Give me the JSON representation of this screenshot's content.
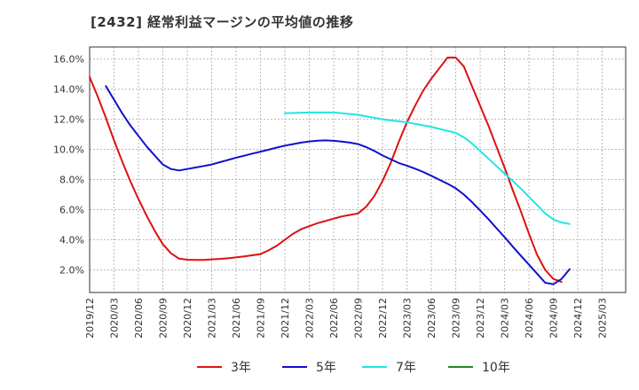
{
  "title": "[2432]  経常利益マージンの平均値の推移",
  "chart_data": {
    "type": "line",
    "title": "[2432]  経常利益マージンの平均値の推移",
    "xlabel": "",
    "ylabel": "",
    "x_ticks": [
      "2019/12",
      "2020/03",
      "2020/06",
      "2020/09",
      "2020/12",
      "2021/03",
      "2021/06",
      "2021/09",
      "2021/12",
      "2022/03",
      "2022/06",
      "2022/09",
      "2022/12",
      "2023/03",
      "2023/06",
      "2023/09",
      "2023/12",
      "2024/03",
      "2024/06",
      "2024/09",
      "2024/12",
      "2025/03"
    ],
    "y_ticks": [
      "2.0%",
      "4.0%",
      "6.0%",
      "8.0%",
      "10.0%",
      "12.0%",
      "14.0%",
      "16.0%"
    ],
    "ylim": [
      0.5,
      16.8
    ],
    "grid": true,
    "legend_position": "bottom",
    "series": [
      {
        "name": "3年",
        "color": "#dd1111",
        "points": [
          [
            "2019/12",
            14.8
          ],
          [
            "2020/01",
            13.5
          ],
          [
            "2020/02",
            12.1
          ],
          [
            "2020/03",
            10.6
          ],
          [
            "2020/04",
            9.2
          ],
          [
            "2020/05",
            7.9
          ],
          [
            "2020/06",
            6.7
          ],
          [
            "2020/07",
            5.6
          ],
          [
            "2020/08",
            4.6
          ],
          [
            "2020/09",
            3.7
          ],
          [
            "2020/10",
            3.1
          ],
          [
            "2020/11",
            2.75
          ],
          [
            "2020/12",
            2.68
          ],
          [
            "2021/01",
            2.66
          ],
          [
            "2021/02",
            2.66
          ],
          [
            "2021/03",
            2.7
          ],
          [
            "2021/04",
            2.73
          ],
          [
            "2021/05",
            2.77
          ],
          [
            "2021/06",
            2.83
          ],
          [
            "2021/07",
            2.9
          ],
          [
            "2021/08",
            2.97
          ],
          [
            "2021/09",
            3.05
          ],
          [
            "2021/10",
            3.3
          ],
          [
            "2021/11",
            3.6
          ],
          [
            "2021/12",
            4.0
          ],
          [
            "2022/01",
            4.4
          ],
          [
            "2022/02",
            4.7
          ],
          [
            "2022/03",
            4.9
          ],
          [
            "2022/04",
            5.1
          ],
          [
            "2022/05",
            5.25
          ],
          [
            "2022/06",
            5.4
          ],
          [
            "2022/07",
            5.55
          ],
          [
            "2022/08",
            5.65
          ],
          [
            "2022/09",
            5.75
          ],
          [
            "2022/10",
            6.2
          ],
          [
            "2022/11",
            6.9
          ],
          [
            "2022/12",
            7.9
          ],
          [
            "2023/01",
            9.1
          ],
          [
            "2023/02",
            10.5
          ],
          [
            "2023/03",
            11.8
          ],
          [
            "2023/04",
            12.9
          ],
          [
            "2023/05",
            13.9
          ],
          [
            "2023/06",
            14.7
          ],
          [
            "2023/07",
            15.4
          ],
          [
            "2023/08",
            16.1
          ],
          [
            "2023/09",
            16.1
          ],
          [
            "2023/10",
            15.5
          ],
          [
            "2023/11",
            14.2
          ],
          [
            "2023/12",
            12.9
          ],
          [
            "2024/01",
            11.6
          ],
          [
            "2024/02",
            10.2
          ],
          [
            "2024/03",
            8.8
          ],
          [
            "2024/04",
            7.3
          ],
          [
            "2024/05",
            5.9
          ],
          [
            "2024/06",
            4.4
          ],
          [
            "2024/07",
            3.0
          ],
          [
            "2024/08",
            2.0
          ],
          [
            "2024/09",
            1.4
          ],
          [
            "2024/10",
            1.2
          ]
        ]
      },
      {
        "name": "5年",
        "color": "#1111cc",
        "points": [
          [
            "2020/02",
            14.2
          ],
          [
            "2020/03",
            13.3
          ],
          [
            "2020/04",
            12.4
          ],
          [
            "2020/05",
            11.6
          ],
          [
            "2020/06",
            10.9
          ],
          [
            "2020/07",
            10.2
          ],
          [
            "2020/08",
            9.6
          ],
          [
            "2020/09",
            9.0
          ],
          [
            "2020/10",
            8.7
          ],
          [
            "2020/11",
            8.6
          ],
          [
            "2020/12",
            8.7
          ],
          [
            "2021/01",
            8.8
          ],
          [
            "2021/02",
            8.9
          ],
          [
            "2021/03",
            9.0
          ],
          [
            "2021/04",
            9.15
          ],
          [
            "2021/05",
            9.3
          ],
          [
            "2021/06",
            9.45
          ],
          [
            "2021/07",
            9.58
          ],
          [
            "2021/08",
            9.72
          ],
          [
            "2021/09",
            9.85
          ],
          [
            "2021/10",
            9.98
          ],
          [
            "2021/11",
            10.12
          ],
          [
            "2021/12",
            10.25
          ],
          [
            "2022/01",
            10.35
          ],
          [
            "2022/02",
            10.45
          ],
          [
            "2022/03",
            10.53
          ],
          [
            "2022/04",
            10.58
          ],
          [
            "2022/05",
            10.6
          ],
          [
            "2022/06",
            10.57
          ],
          [
            "2022/07",
            10.52
          ],
          [
            "2022/08",
            10.45
          ],
          [
            "2022/09",
            10.35
          ],
          [
            "2022/10",
            10.15
          ],
          [
            "2022/11",
            9.9
          ],
          [
            "2022/12",
            9.6
          ],
          [
            "2023/01",
            9.35
          ],
          [
            "2023/02",
            9.1
          ],
          [
            "2023/03",
            8.92
          ],
          [
            "2023/04",
            8.72
          ],
          [
            "2023/05",
            8.5
          ],
          [
            "2023/06",
            8.25
          ],
          [
            "2023/07",
            7.98
          ],
          [
            "2023/08",
            7.72
          ],
          [
            "2023/09",
            7.42
          ],
          [
            "2023/10",
            7.0
          ],
          [
            "2023/11",
            6.5
          ],
          [
            "2023/12",
            5.95
          ],
          [
            "2024/01",
            5.38
          ],
          [
            "2024/02",
            4.78
          ],
          [
            "2024/03",
            4.18
          ],
          [
            "2024/04",
            3.55
          ],
          [
            "2024/05",
            2.95
          ],
          [
            "2024/06",
            2.35
          ],
          [
            "2024/07",
            1.75
          ],
          [
            "2024/08",
            1.15
          ],
          [
            "2024/09",
            1.05
          ],
          [
            "2024/10",
            1.4
          ],
          [
            "2024/11",
            2.05
          ]
        ]
      },
      {
        "name": "7年",
        "color": "#22e5e5",
        "points": [
          [
            "2021/12",
            12.4
          ],
          [
            "2022/03",
            12.45
          ],
          [
            "2022/06",
            12.45
          ],
          [
            "2022/09",
            12.3
          ],
          [
            "2022/12",
            12.0
          ],
          [
            "2023/03",
            11.8
          ],
          [
            "2023/06",
            11.5
          ],
          [
            "2023/09",
            11.1
          ],
          [
            "2023/10",
            10.8
          ],
          [
            "2023/11",
            10.4
          ],
          [
            "2023/12",
            9.9
          ],
          [
            "2024/01",
            9.4
          ],
          [
            "2024/02",
            8.9
          ],
          [
            "2024/03",
            8.4
          ],
          [
            "2024/04",
            7.9
          ],
          [
            "2024/05",
            7.4
          ],
          [
            "2024/06",
            6.85
          ],
          [
            "2024/07",
            6.3
          ],
          [
            "2024/08",
            5.75
          ],
          [
            "2024/09",
            5.35
          ],
          [
            "2024/10",
            5.15
          ],
          [
            "2024/11",
            5.05
          ]
        ]
      },
      {
        "name": "10年",
        "color": "#228822",
        "points": []
      }
    ]
  }
}
